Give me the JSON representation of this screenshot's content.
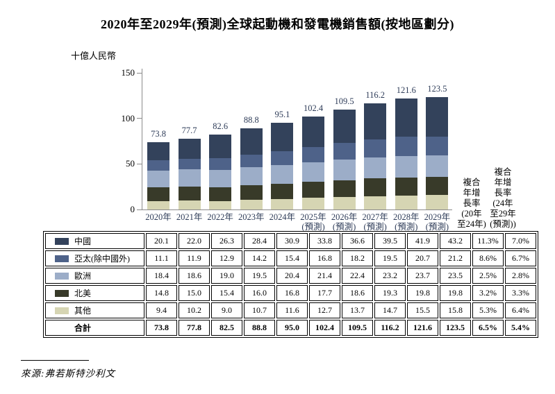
{
  "title": "2020年至2029年(預測)全球起動機和發電機銷售額(按地區劃分)",
  "unit_label": "十億人民幣",
  "source": "來源:弗若斯特沙利文",
  "colors": {
    "china": "#33425b",
    "apac_ex_china": "#4e6289",
    "europe": "#9cadc8",
    "north_america": "#383a29",
    "other": "#d6d5b3",
    "chart_label_navy": "#2e3c58",
    "axis_gray": "#8a8a8a"
  },
  "cagr_headers": [
    "複合\n年增\n長率\n(20年\n至24年)",
    "複合\n年增\n長率\n(24年\n至29年\n(預測))"
  ],
  "chart_data": {
    "type": "bar",
    "stacked": true,
    "title": "2020年至2029年(預測)全球起動機和發電機銷售額(按地區劃分)",
    "ylabel": "十億人民幣",
    "ylim": [
      0,
      150
    ],
    "yticks": [
      0,
      50,
      100,
      150
    ],
    "grid": false,
    "legend_position": "table-left-column",
    "categories": [
      "2020年",
      "2021年",
      "2022年",
      "2023年",
      "2024年",
      "2025年\n(預測)",
      "2026年\n(預測)",
      "2027年\n(預測)",
      "2028年\n(預測)",
      "2029年\n(預測)"
    ],
    "series": [
      {
        "name": "中國",
        "color": "#33425b",
        "values": [
          20.1,
          22.0,
          26.3,
          28.4,
          30.9,
          33.8,
          36.6,
          39.5,
          41.9,
          43.2
        ]
      },
      {
        "name": "亞太(除中國外)",
        "color": "#4e6289",
        "values": [
          11.1,
          11.9,
          12.9,
          14.2,
          15.4,
          16.8,
          18.2,
          19.5,
          20.7,
          21.2
        ]
      },
      {
        "name": "歐洲",
        "color": "#9cadc8",
        "values": [
          18.4,
          18.6,
          19.0,
          19.5,
          20.4,
          21.4,
          22.4,
          23.2,
          23.7,
          23.5
        ]
      },
      {
        "name": "北美",
        "color": "#383a29",
        "values": [
          14.8,
          15.0,
          15.4,
          16.0,
          16.8,
          17.7,
          18.6,
          19.3,
          19.8,
          19.8
        ]
      },
      {
        "name": "其他",
        "color": "#d6d5b3",
        "values": [
          9.4,
          10.2,
          9.0,
          10.7,
          11.6,
          12.7,
          13.7,
          14.7,
          15.5,
          15.8
        ]
      }
    ],
    "stack_order_bottom_to_top": [
      "其他",
      "北美",
      "歐洲",
      "亞太(除中國外)",
      "中國"
    ],
    "total_labels": [
      "73.8",
      "77.7",
      "82.6",
      "88.8",
      "95.1",
      "102.4",
      "109.5",
      "116.2",
      "121.6",
      "123.5"
    ]
  },
  "table": {
    "rows": [
      {
        "label": "中國",
        "swatch_color": "#33425b",
        "values": [
          "20.1",
          "22.0",
          "26.3",
          "28.4",
          "30.9",
          "33.8",
          "36.6",
          "39.5",
          "41.9",
          "43.2"
        ],
        "cagr_20_24": "11.3%",
        "cagr_24_29": "7.0%",
        "bold": false
      },
      {
        "label": "亞太(除中國外)",
        "swatch_color": "#4e6289",
        "values": [
          "11.1",
          "11.9",
          "12.9",
          "14.2",
          "15.4",
          "16.8",
          "18.2",
          "19.5",
          "20.7",
          "21.2"
        ],
        "cagr_20_24": "8.6%",
        "cagr_24_29": "6.7%",
        "bold": false
      },
      {
        "label": "歐洲",
        "swatch_color": "#9cadc8",
        "values": [
          "18.4",
          "18.6",
          "19.0",
          "19.5",
          "20.4",
          "21.4",
          "22.4",
          "23.2",
          "23.7",
          "23.5"
        ],
        "cagr_20_24": "2.5%",
        "cagr_24_29": "2.8%",
        "bold": false
      },
      {
        "label": "北美",
        "swatch_color": "#383a29",
        "values": [
          "14.8",
          "15.0",
          "15.4",
          "16.0",
          "16.8",
          "17.7",
          "18.6",
          "19.3",
          "19.8",
          "19.8"
        ],
        "cagr_20_24": "3.2%",
        "cagr_24_29": "3.3%",
        "bold": false
      },
      {
        "label": "其他",
        "swatch_color": "#d6d5b3",
        "values": [
          "9.4",
          "10.2",
          "9.0",
          "10.7",
          "11.6",
          "12.7",
          "13.7",
          "14.7",
          "15.5",
          "15.8"
        ],
        "cagr_20_24": "5.3%",
        "cagr_24_29": "6.4%",
        "bold": false
      },
      {
        "label": "合計",
        "swatch_color": null,
        "values": [
          "73.8",
          "77.8",
          "82.5",
          "88.8",
          "95.0",
          "102.4",
          "109.5",
          "116.2",
          "121.6",
          "123.5"
        ],
        "cagr_20_24": "6.5%",
        "cagr_24_29": "5.4%",
        "bold": true
      }
    ]
  }
}
